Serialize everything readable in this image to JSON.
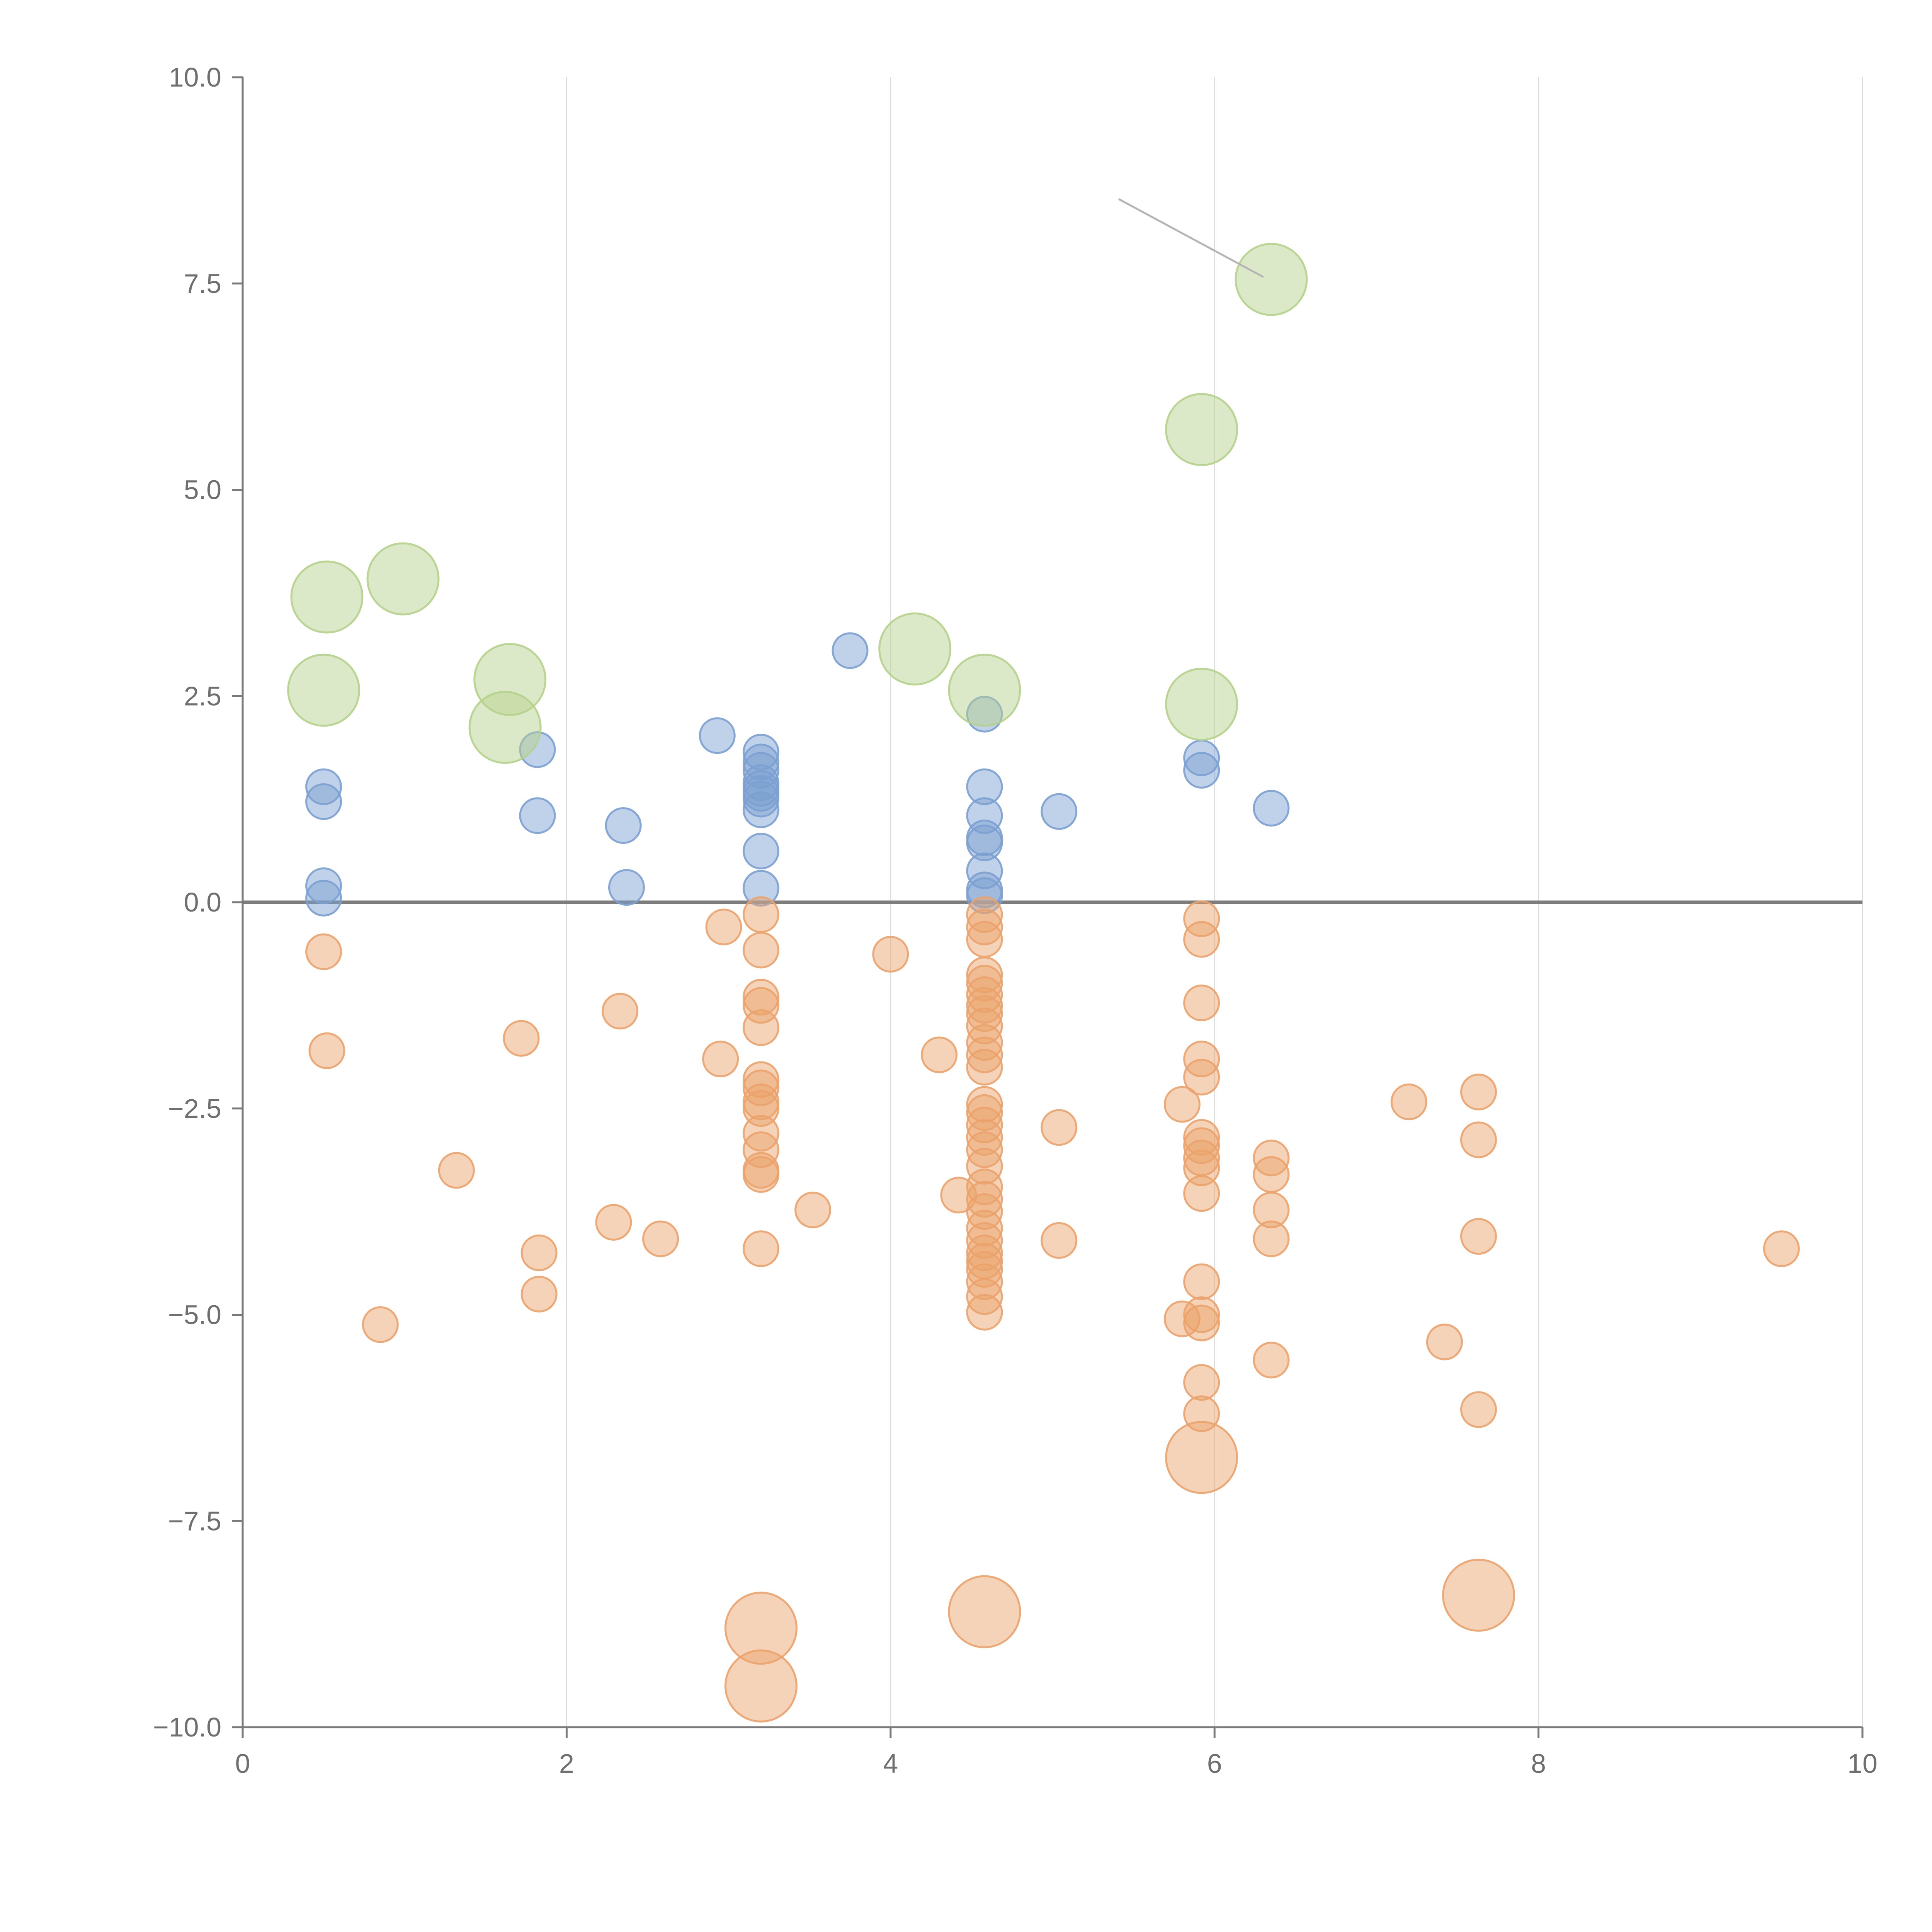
{
  "chart_data": {
    "type": "scatter",
    "title": "",
    "xlabel": "",
    "ylabel": "",
    "xlim": [
      0,
      10
    ],
    "ylim": [
      -10,
      10
    ],
    "x_ticks": [
      0,
      2,
      4,
      6,
      8,
      10
    ],
    "y_ticks": [
      -10,
      -7.5,
      -5,
      -2.5,
      0,
      2.5,
      5,
      7.5,
      10
    ],
    "x_tick_labels": [
      "0",
      "2",
      "4",
      "6",
      "8",
      "10"
    ],
    "y_tick_labels": [
      "−10.0",
      "−7.5",
      "−5.0",
      "−2.5",
      "0.0",
      "2.5",
      "5.0",
      "7.5",
      "10.0"
    ],
    "grid": "vertical gridlines at x ticks",
    "zero_line": 0,
    "legend": "none",
    "colors": {
      "positive": "#7ba0d2",
      "negative": "#eba26b",
      "highlight": "#b5d28b"
    },
    "series": [
      {
        "color_key": "positive",
        "size": "small",
        "points": [
          [
            0.5,
            1.4
          ],
          [
            0.5,
            1.22
          ],
          [
            0.5,
            0.2
          ],
          [
            0.5,
            0.05
          ],
          [
            1.82,
            1.85
          ],
          [
            1.82,
            1.05
          ],
          [
            2.35,
            0.93
          ],
          [
            2.37,
            0.18
          ],
          [
            2.93,
            2.02
          ],
          [
            3.2,
            1.82
          ],
          [
            3.2,
            1.7
          ],
          [
            3.2,
            1.6
          ],
          [
            3.2,
            1.45
          ],
          [
            3.2,
            1.38
          ],
          [
            3.2,
            1.32
          ],
          [
            3.2,
            1.25
          ],
          [
            3.2,
            1.12
          ],
          [
            3.2,
            0.62
          ],
          [
            3.2,
            0.17
          ],
          [
            3.75,
            3.05
          ],
          [
            4.58,
            2.28
          ],
          [
            4.58,
            1.4
          ],
          [
            4.58,
            1.05
          ],
          [
            4.58,
            0.78
          ],
          [
            4.58,
            0.72
          ],
          [
            4.58,
            0.38
          ],
          [
            4.58,
            0.15
          ],
          [
            4.58,
            0.08
          ],
          [
            5.04,
            1.1
          ],
          [
            5.92,
            1.75
          ],
          [
            5.92,
            1.6
          ],
          [
            6.35,
            1.14
          ]
        ]
      },
      {
        "color_key": "negative",
        "size": "small",
        "points": [
          [
            0.5,
            -0.6
          ],
          [
            0.52,
            -1.8
          ],
          [
            0.85,
            -5.12
          ],
          [
            1.32,
            -3.25
          ],
          [
            1.72,
            -1.65
          ],
          [
            1.83,
            -4.25
          ],
          [
            1.83,
            -4.75
          ],
          [
            2.29,
            -3.88
          ],
          [
            2.33,
            -1.32
          ],
          [
            2.58,
            -4.08
          ],
          [
            2.95,
            -1.9
          ],
          [
            2.97,
            -0.3
          ],
          [
            3.2,
            -0.15
          ],
          [
            3.2,
            -0.58
          ],
          [
            3.2,
            -1.15
          ],
          [
            3.2,
            -1.25
          ],
          [
            3.2,
            -1.52
          ],
          [
            3.2,
            -2.15
          ],
          [
            3.2,
            -2.25
          ],
          [
            3.2,
            -2.42
          ],
          [
            3.2,
            -2.5
          ],
          [
            3.2,
            -2.8
          ],
          [
            3.2,
            -3.0
          ],
          [
            3.2,
            -3.25
          ],
          [
            3.2,
            -3.3
          ],
          [
            3.2,
            -4.2
          ],
          [
            3.52,
            -3.73
          ],
          [
            4.0,
            -0.63
          ],
          [
            4.3,
            -1.85
          ],
          [
            4.42,
            -3.55
          ],
          [
            4.58,
            -0.15
          ],
          [
            4.58,
            -0.3
          ],
          [
            4.58,
            -0.45
          ],
          [
            4.58,
            -0.88
          ],
          [
            4.58,
            -0.98
          ],
          [
            4.58,
            -1.12
          ],
          [
            4.58,
            -1.25
          ],
          [
            4.58,
            -1.35
          ],
          [
            4.58,
            -1.5
          ],
          [
            4.58,
            -1.7
          ],
          [
            4.58,
            -1.85
          ],
          [
            4.58,
            -2.0
          ],
          [
            4.58,
            -2.45
          ],
          [
            4.58,
            -2.55
          ],
          [
            4.58,
            -2.7
          ],
          [
            4.58,
            -2.85
          ],
          [
            4.58,
            -3.0
          ],
          [
            4.58,
            -3.2
          ],
          [
            4.58,
            -3.45
          ],
          [
            4.58,
            -3.6
          ],
          [
            4.58,
            -3.75
          ],
          [
            4.58,
            -3.95
          ],
          [
            4.58,
            -4.1
          ],
          [
            4.58,
            -4.25
          ],
          [
            4.58,
            -4.35
          ],
          [
            4.58,
            -4.45
          ],
          [
            4.58,
            -4.6
          ],
          [
            4.58,
            -4.78
          ],
          [
            4.58,
            -4.97
          ],
          [
            5.04,
            -2.73
          ],
          [
            5.04,
            -4.1
          ],
          [
            5.8,
            -2.45
          ],
          [
            5.8,
            -5.05
          ],
          [
            5.92,
            -0.2
          ],
          [
            5.92,
            -0.45
          ],
          [
            5.92,
            -1.22
          ],
          [
            5.92,
            -1.9
          ],
          [
            5.92,
            -2.12
          ],
          [
            5.92,
            -2.85
          ],
          [
            5.92,
            -2.95
          ],
          [
            5.92,
            -3.1
          ],
          [
            5.92,
            -3.22
          ],
          [
            5.92,
            -3.53
          ],
          [
            5.92,
            -4.6
          ],
          [
            5.92,
            -5.0
          ],
          [
            5.92,
            -5.1
          ],
          [
            5.92,
            -5.82
          ],
          [
            5.92,
            -6.2
          ],
          [
            6.35,
            -3.1
          ],
          [
            6.35,
            -3.3
          ],
          [
            6.35,
            -3.73
          ],
          [
            6.35,
            -4.08
          ],
          [
            6.35,
            -5.55
          ],
          [
            7.2,
            -2.42
          ],
          [
            7.42,
            -5.33
          ],
          [
            7.63,
            -2.3
          ],
          [
            7.63,
            -2.88
          ],
          [
            7.63,
            -4.05
          ],
          [
            7.63,
            -6.15
          ],
          [
            9.5,
            -4.2
          ]
        ]
      },
      {
        "color_key": "negative",
        "size": "large",
        "points": [
          [
            5.92,
            -6.73
          ],
          [
            3.2,
            -8.8
          ],
          [
            3.2,
            -9.5
          ],
          [
            4.58,
            -8.6
          ],
          [
            7.63,
            -8.4
          ]
        ]
      },
      {
        "color_key": "highlight",
        "size": "large",
        "points": [
          [
            0.52,
            3.7
          ],
          [
            0.5,
            2.57
          ],
          [
            0.99,
            3.92
          ],
          [
            1.65,
            2.7
          ],
          [
            1.62,
            2.12
          ],
          [
            4.15,
            3.07
          ],
          [
            4.58,
            2.57
          ],
          [
            5.92,
            5.73
          ],
          [
            5.92,
            2.4
          ],
          [
            6.35,
            7.55
          ]
        ]
      }
    ]
  }
}
